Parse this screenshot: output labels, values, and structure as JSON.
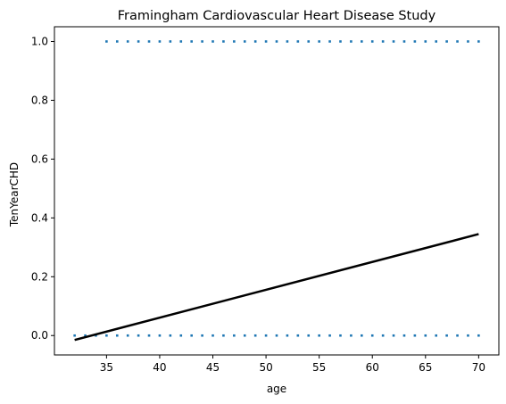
{
  "chart_data": {
    "type": "scatter",
    "title": "Framingham Cardiovascular Heart Disease Study",
    "xlabel": "age",
    "ylabel": "TenYearCHD",
    "xlim": [
      30.1,
      71.9
    ],
    "ylim": [
      -0.066,
      1.05
    ],
    "x_ticks": [
      35,
      40,
      45,
      50,
      55,
      60,
      65,
      70
    ],
    "y_ticks": [
      0.0,
      0.2,
      0.4,
      0.6,
      0.8,
      1.0
    ],
    "x_tick_labels": [
      "35",
      "40",
      "45",
      "50",
      "55",
      "60",
      "65",
      "70"
    ],
    "y_tick_labels": [
      "0.0",
      "0.2",
      "0.4",
      "0.6",
      "0.8",
      "1.0"
    ],
    "grid": false,
    "series": [
      {
        "type": "scatter",
        "color": "#1f77b4",
        "points": [
          [
            32,
            0
          ],
          [
            33,
            0
          ],
          [
            34,
            0
          ],
          [
            35,
            0
          ],
          [
            36,
            0
          ],
          [
            37,
            0
          ],
          [
            38,
            0
          ],
          [
            39,
            0
          ],
          [
            40,
            0
          ],
          [
            41,
            0
          ],
          [
            42,
            0
          ],
          [
            43,
            0
          ],
          [
            44,
            0
          ],
          [
            45,
            0
          ],
          [
            46,
            0
          ],
          [
            47,
            0
          ],
          [
            48,
            0
          ],
          [
            49,
            0
          ],
          [
            50,
            0
          ],
          [
            51,
            0
          ],
          [
            52,
            0
          ],
          [
            53,
            0
          ],
          [
            54,
            0
          ],
          [
            55,
            0
          ],
          [
            56,
            0
          ],
          [
            57,
            0
          ],
          [
            58,
            0
          ],
          [
            59,
            0
          ],
          [
            60,
            0
          ],
          [
            61,
            0
          ],
          [
            62,
            0
          ],
          [
            63,
            0
          ],
          [
            64,
            0
          ],
          [
            65,
            0
          ],
          [
            66,
            0
          ],
          [
            67,
            0
          ],
          [
            68,
            0
          ],
          [
            69,
            0
          ],
          [
            70,
            0
          ],
          [
            35,
            1
          ],
          [
            36,
            1
          ],
          [
            37,
            1
          ],
          [
            38,
            1
          ],
          [
            39,
            1
          ],
          [
            40,
            1
          ],
          [
            41,
            1
          ],
          [
            42,
            1
          ],
          [
            43,
            1
          ],
          [
            44,
            1
          ],
          [
            45,
            1
          ],
          [
            46,
            1
          ],
          [
            47,
            1
          ],
          [
            48,
            1
          ],
          [
            49,
            1
          ],
          [
            50,
            1
          ],
          [
            51,
            1
          ],
          [
            52,
            1
          ],
          [
            53,
            1
          ],
          [
            54,
            1
          ],
          [
            55,
            1
          ],
          [
            56,
            1
          ],
          [
            57,
            1
          ],
          [
            58,
            1
          ],
          [
            59,
            1
          ],
          [
            60,
            1
          ],
          [
            61,
            1
          ],
          [
            62,
            1
          ],
          [
            63,
            1
          ],
          [
            64,
            1
          ],
          [
            65,
            1
          ],
          [
            66,
            1
          ],
          [
            67,
            1
          ],
          [
            68,
            1
          ],
          [
            69,
            1
          ],
          [
            70,
            1
          ]
        ]
      },
      {
        "type": "line",
        "color": "#000000",
        "x": [
          32,
          70
        ],
        "y": [
          -0.015,
          0.345
        ]
      }
    ]
  }
}
